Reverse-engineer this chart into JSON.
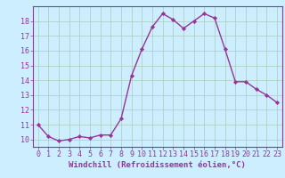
{
  "x": [
    0,
    1,
    2,
    3,
    4,
    5,
    6,
    7,
    8,
    9,
    10,
    11,
    12,
    13,
    14,
    15,
    16,
    17,
    18,
    19,
    20,
    21,
    22,
    23
  ],
  "y": [
    11.0,
    10.2,
    9.9,
    10.0,
    10.2,
    10.1,
    10.3,
    10.3,
    11.4,
    14.3,
    16.1,
    17.6,
    18.5,
    18.1,
    17.5,
    18.0,
    18.5,
    18.2,
    16.1,
    13.9,
    13.9,
    13.4,
    13.0,
    12.5
  ],
  "line_color": "#993399",
  "marker": "D",
  "marker_size": 2.2,
  "bg_color": "#cceeff",
  "grid_color": "#aaccbb",
  "xlabel": "Windchill (Refroidissement éolien,°C)",
  "xlim": [
    -0.5,
    23.5
  ],
  "ylim": [
    9.5,
    19.0
  ],
  "yticks": [
    10,
    11,
    12,
    13,
    14,
    15,
    16,
    17,
    18
  ],
  "xticks": [
    0,
    1,
    2,
    3,
    4,
    5,
    6,
    7,
    8,
    9,
    10,
    11,
    12,
    13,
    14,
    15,
    16,
    17,
    18,
    19,
    20,
    21,
    22,
    23
  ],
  "tick_color": "#993399",
  "label_fontsize": 6.5,
  "tick_fontsize": 6.0,
  "line_width": 1.0,
  "spine_color": "#993399"
}
